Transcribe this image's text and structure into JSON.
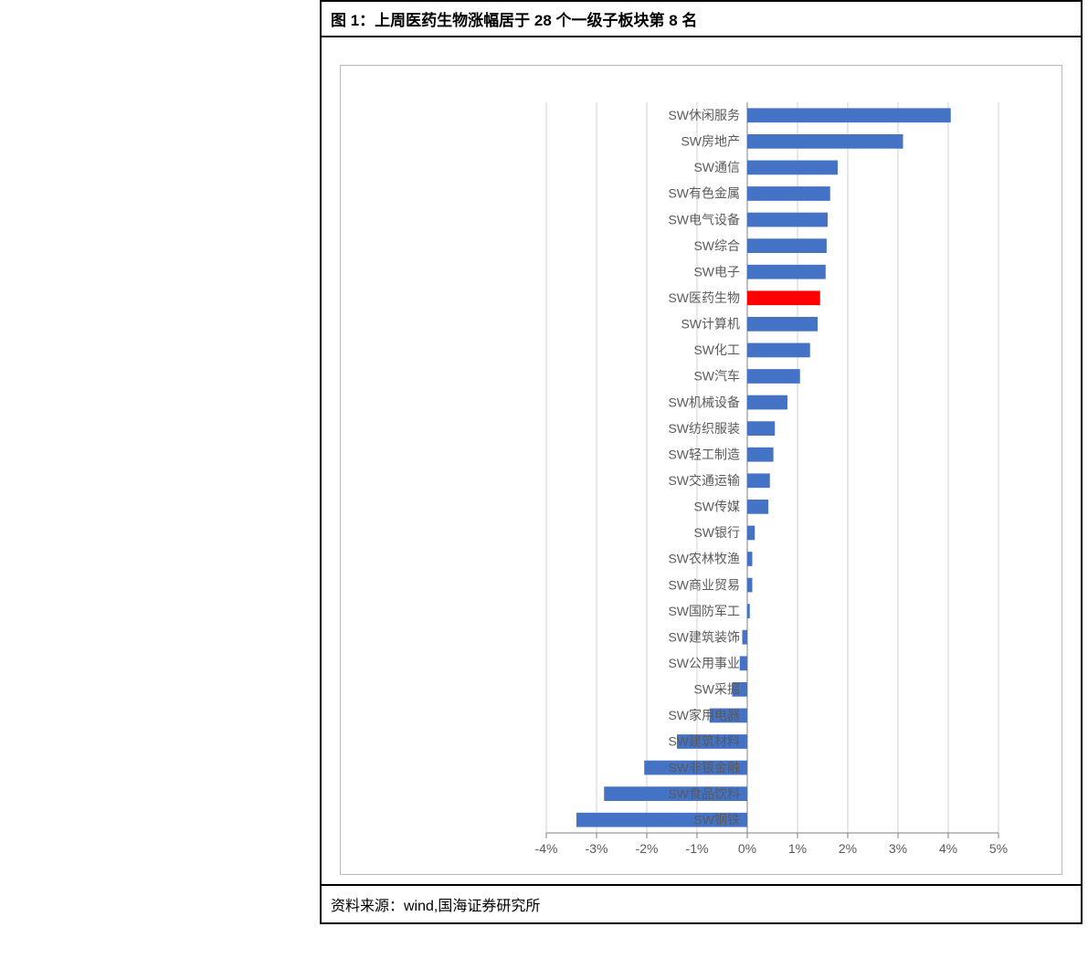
{
  "figure": {
    "title": "图 1：上周医药生物涨幅居于 28 个一级子板块第 8 名",
    "source": "资料来源：wind,国海证券研究所",
    "chart": {
      "type": "bar-horizontal",
      "xlim": [
        -4,
        5
      ],
      "xtick_step": 1,
      "xtick_labels": [
        "-4%",
        "-3%",
        "-2%",
        "-1%",
        "0%",
        "1%",
        "2%",
        "3%",
        "4%",
        "5%"
      ],
      "background_color": "#ffffff",
      "grid_color": "#d0d0d0",
      "axis_color": "#808080",
      "label_color": "#5a5a5a",
      "default_bar_color": "#4472c4",
      "highlight_bar_color": "#ff0000",
      "label_fontsize": 14,
      "bar_height_ratio": 0.55,
      "plot_inner_width": 720,
      "plot_inner_height": 800,
      "label_area_width": 215,
      "categories": [
        {
          "label": "SW休闲服务",
          "value": 4.05,
          "highlight": false
        },
        {
          "label": "SW房地产",
          "value": 3.1,
          "highlight": false
        },
        {
          "label": "SW通信",
          "value": 1.8,
          "highlight": false
        },
        {
          "label": "SW有色金属",
          "value": 1.65,
          "highlight": false
        },
        {
          "label": "SW电气设备",
          "value": 1.6,
          "highlight": false
        },
        {
          "label": "SW综合",
          "value": 1.58,
          "highlight": false
        },
        {
          "label": "SW电子",
          "value": 1.56,
          "highlight": false
        },
        {
          "label": "SW医药生物",
          "value": 1.45,
          "highlight": true
        },
        {
          "label": "SW计算机",
          "value": 1.4,
          "highlight": false
        },
        {
          "label": "SW化工",
          "value": 1.25,
          "highlight": false
        },
        {
          "label": "SW汽车",
          "value": 1.05,
          "highlight": false
        },
        {
          "label": "SW机械设备",
          "value": 0.8,
          "highlight": false
        },
        {
          "label": "SW纺织服装",
          "value": 0.55,
          "highlight": false
        },
        {
          "label": "SW轻工制造",
          "value": 0.52,
          "highlight": false
        },
        {
          "label": "SW交通运输",
          "value": 0.45,
          "highlight": false
        },
        {
          "label": "SW传媒",
          "value": 0.42,
          "highlight": false
        },
        {
          "label": "SW银行",
          "value": 0.15,
          "highlight": false
        },
        {
          "label": "SW农林牧渔",
          "value": 0.1,
          "highlight": false
        },
        {
          "label": "SW商业贸易",
          "value": 0.1,
          "highlight": false
        },
        {
          "label": "SW国防军工",
          "value": 0.05,
          "highlight": false
        },
        {
          "label": "SW建筑装饰",
          "value": -0.1,
          "highlight": false
        },
        {
          "label": "SW公用事业",
          "value": -0.15,
          "highlight": false
        },
        {
          "label": "SW采掘",
          "value": -0.3,
          "highlight": false
        },
        {
          "label": "SW家用电器",
          "value": -0.75,
          "highlight": false
        },
        {
          "label": "SW建筑材料",
          "value": -1.4,
          "highlight": false
        },
        {
          "label": "SW非银金融",
          "value": -2.05,
          "highlight": false
        },
        {
          "label": "SW食品饮料",
          "value": -2.85,
          "highlight": false
        },
        {
          "label": "SW钢铁",
          "value": -3.4,
          "highlight": false
        }
      ]
    }
  }
}
